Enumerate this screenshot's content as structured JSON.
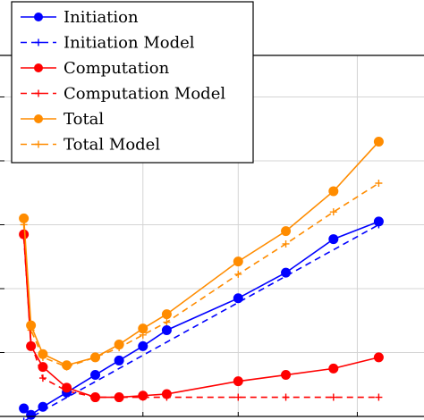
{
  "chart_data": {
    "type": "line",
    "title": "",
    "xlabel": "",
    "ylabel": "",
    "grid": true,
    "legend_placement": "top-left",
    "xlim": [
      0,
      17.8
    ],
    "ylim": [
      0,
      11.3
    ],
    "x_gridlines": [
      6.0,
      10.0,
      15.0
    ],
    "y_gridlines": [
      2.0,
      4.0,
      6.0,
      8.0,
      10.0
    ],
    "series": [
      {
        "name": "Initiation",
        "color": "#0000ff",
        "style": "solid",
        "marker": "circle",
        "x": [
          1.0,
          1.3,
          1.8,
          2.8,
          4.0,
          5.0,
          6.0,
          7.0,
          10.0,
          12.0,
          14.0,
          15.9
        ],
        "y": [
          0.25,
          0.05,
          0.3,
          0.75,
          1.3,
          1.75,
          2.2,
          2.7,
          3.7,
          4.5,
          5.55,
          6.1
        ]
      },
      {
        "name": "Initiation Model",
        "color": "#0000ff",
        "style": "dashed",
        "marker": "plus",
        "x": [
          1.0,
          15.9
        ],
        "y": [
          -0.15,
          6.0
        ]
      },
      {
        "name": "Computation",
        "color": "#ff0000",
        "style": "solid",
        "marker": "circle",
        "x": [
          1.0,
          1.3,
          1.8,
          2.8,
          4.0,
          5.0,
          6.0,
          7.0,
          10.0,
          12.0,
          14.0,
          15.9
        ],
        "y": [
          5.7,
          2.2,
          1.55,
          0.9,
          0.6,
          0.6,
          0.65,
          0.7,
          1.1,
          1.3,
          1.5,
          1.85
        ]
      },
      {
        "name": "Computation Model",
        "color": "#ff0000",
        "style": "dashed",
        "marker": "plus",
        "x": [
          1.0,
          1.3,
          1.8,
          2.8,
          4.0,
          5.0,
          6.0,
          7.0,
          10.0,
          12.0,
          14.0,
          15.9
        ],
        "y": [
          5.6,
          2.3,
          1.2,
          0.8,
          0.6,
          0.6,
          0.6,
          0.6,
          0.6,
          0.6,
          0.6,
          0.6
        ]
      },
      {
        "name": "Total",
        "color": "#ff8c00",
        "style": "solid",
        "marker": "circle",
        "x": [
          1.0,
          1.3,
          1.8,
          2.8,
          4.0,
          5.0,
          6.0,
          7.0,
          10.0,
          12.0,
          14.0,
          15.9
        ],
        "y": [
          6.2,
          2.85,
          1.95,
          1.6,
          1.85,
          2.25,
          2.75,
          3.2,
          4.85,
          5.8,
          7.05,
          8.6
        ]
      },
      {
        "name": "Total Model",
        "color": "#ff8c00",
        "style": "dashed",
        "marker": "plus",
        "x": [
          1.0,
          1.3,
          1.8,
          2.8,
          4.0,
          5.0,
          6.0,
          7.0,
          10.0,
          12.0,
          14.0,
          15.9
        ],
        "y": [
          6.0,
          2.7,
          1.85,
          1.55,
          1.85,
          2.15,
          2.55,
          2.95,
          4.45,
          5.4,
          6.4,
          7.3
        ]
      }
    ]
  }
}
